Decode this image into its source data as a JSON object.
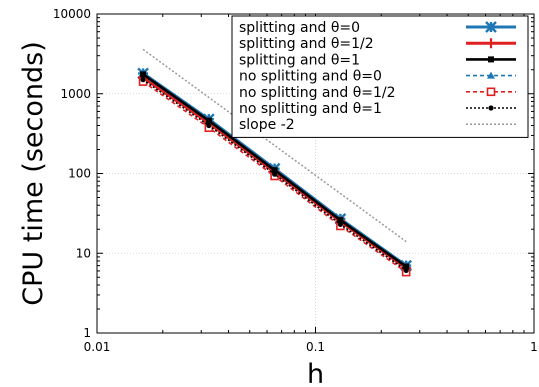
{
  "chart_data": {
    "type": "line",
    "title": "",
    "xlabel": "h",
    "ylabel": "CPU time (seconds)",
    "x_scale": "log",
    "y_scale": "log",
    "xlim": [
      0.01,
      1
    ],
    "ylim": [
      1,
      10000
    ],
    "x_ticks": [
      0.01,
      0.1,
      1
    ],
    "x_tick_labels": [
      "0.01",
      "0.1",
      "1"
    ],
    "y_ticks": [
      1,
      10,
      100,
      1000,
      10000
    ],
    "y_tick_labels": [
      "1",
      "10",
      "100",
      "1000",
      "10000"
    ],
    "grid": true,
    "legend_position": "top-right",
    "series": [
      {
        "name": "splitting and θ=0",
        "color": "#1f77b4",
        "marker": "x",
        "line_style": "solid",
        "x": [
          0.01625,
          0.0325,
          0.065,
          0.13,
          0.26
        ],
        "y": [
          1800,
          480,
          115,
          27,
          7
        ]
      },
      {
        "name": "splitting and θ=1/2",
        "color": "#e02020",
        "marker": "plus",
        "line_style": "solid",
        "x": [
          0.01625,
          0.0325,
          0.065,
          0.13,
          0.26
        ],
        "y": [
          1600,
          430,
          104,
          25,
          6.5
        ]
      },
      {
        "name": "splitting and θ=1",
        "color": "#000000",
        "marker": "square-filled",
        "line_style": "solid",
        "x": [
          0.01625,
          0.0325,
          0.065,
          0.13,
          0.26
        ],
        "y": [
          1750,
          460,
          110,
          26,
          6.8
        ]
      },
      {
        "name": "no splitting and θ=0",
        "color": "#1f77b4",
        "marker": "triangle",
        "line_style": "dashed",
        "x": [
          0.01625,
          0.0325,
          0.065,
          0.13,
          0.26
        ],
        "y": [
          1700,
          450,
          108,
          26,
          6.8
        ]
      },
      {
        "name": "no splitting and θ=1/2",
        "color": "#e02020",
        "marker": "square-open",
        "line_style": "dashed",
        "x": [
          0.01625,
          0.0325,
          0.065,
          0.13,
          0.26
        ],
        "y": [
          1420,
          375,
          93,
          22,
          5.8
        ]
      },
      {
        "name": "no splitting and θ=1",
        "color": "#000000",
        "marker": "circle",
        "line_style": "dotted",
        "x": [
          0.01625,
          0.0325,
          0.065,
          0.13,
          0.26
        ],
        "y": [
          1500,
          400,
          98,
          23,
          6.1
        ]
      },
      {
        "name": "slope -2",
        "color": "#999999",
        "marker": "none",
        "line_style": "dotted",
        "x": [
          0.01625,
          0.26
        ],
        "y": [
          3600,
          14
        ]
      }
    ]
  }
}
